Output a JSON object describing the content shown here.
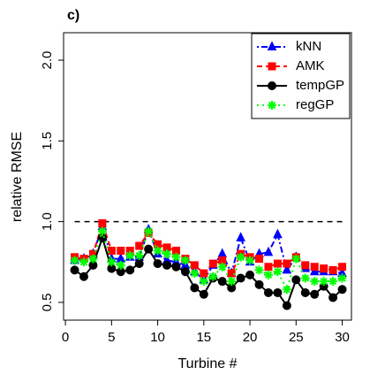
{
  "chart_data": {
    "type": "line",
    "panel_label": "c)",
    "xlabel": "Turbine #",
    "ylabel": "relative RMSE",
    "x": [
      1,
      2,
      3,
      4,
      5,
      6,
      7,
      8,
      9,
      10,
      11,
      12,
      13,
      14,
      15,
      16,
      17,
      18,
      19,
      20,
      21,
      22,
      23,
      24,
      25,
      26,
      27,
      28,
      29,
      30
    ],
    "series": [
      {
        "name": "kNN",
        "color": "#0000ff",
        "marker": "triangle",
        "linestyle": "dashdot",
        "values": [
          0.76,
          0.77,
          0.8,
          0.97,
          0.77,
          0.77,
          0.78,
          0.78,
          0.95,
          0.8,
          0.76,
          0.75,
          0.73,
          0.69,
          0.64,
          0.73,
          0.8,
          0.68,
          0.9,
          0.75,
          0.8,
          0.81,
          0.92,
          0.7,
          0.78,
          0.71,
          0.69,
          0.69,
          0.69,
          0.68
        ]
      },
      {
        "name": "AMK",
        "color": "#ff0000",
        "marker": "square",
        "linestyle": "dashed",
        "values": [
          0.78,
          0.77,
          0.8,
          0.99,
          0.82,
          0.82,
          0.82,
          0.85,
          0.93,
          0.86,
          0.84,
          0.82,
          0.77,
          0.73,
          0.68,
          0.74,
          0.76,
          0.68,
          0.8,
          0.78,
          0.77,
          0.72,
          0.74,
          0.74,
          0.78,
          0.73,
          0.72,
          0.71,
          0.7,
          0.72
        ]
      },
      {
        "name": "tempGP",
        "color": "#000000",
        "marker": "circle",
        "linestyle": "solid",
        "values": [
          0.7,
          0.66,
          0.73,
          0.9,
          0.71,
          0.69,
          0.7,
          0.74,
          0.83,
          0.74,
          0.73,
          0.72,
          0.69,
          0.59,
          0.55,
          0.65,
          0.63,
          0.59,
          0.65,
          0.67,
          0.61,
          0.56,
          0.56,
          0.48,
          0.64,
          0.56,
          0.55,
          0.6,
          0.53,
          0.58
        ]
      },
      {
        "name": "regGP",
        "color": "#00ff00",
        "marker": "asterisk",
        "linestyle": "dotted",
        "values": [
          0.76,
          0.75,
          0.77,
          0.94,
          0.75,
          0.73,
          0.79,
          0.79,
          0.94,
          0.82,
          0.8,
          0.78,
          0.76,
          0.68,
          0.63,
          0.66,
          0.72,
          0.63,
          0.78,
          0.76,
          0.7,
          0.67,
          0.69,
          0.58,
          0.77,
          0.65,
          0.63,
          0.63,
          0.63,
          0.65
        ]
      }
    ],
    "hline": 1.0,
    "xlim": [
      -0.2,
      31
    ],
    "ylim": [
      0.39,
      2.17
    ],
    "xticks": [
      0,
      5,
      10,
      15,
      20,
      25,
      30
    ],
    "yticks": [
      0.5,
      {
        "value": 1.0,
        "label": "1.0"
      },
      1.5,
      {
        "value": 2.0,
        "label": "2.0"
      }
    ],
    "legend": "top-right",
    "grid": false
  }
}
